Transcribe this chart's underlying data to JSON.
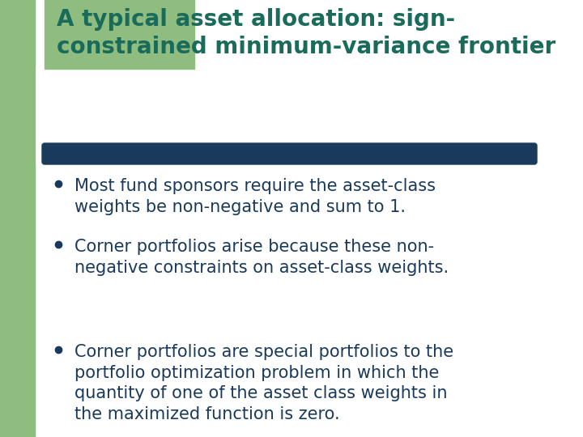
{
  "bg_color": "#ffffff",
  "green_bg_color": "#8fbc7f",
  "title_color": "#1a6b5a",
  "title_line1": "A typical asset allocation: sign-",
  "title_line2": "constrained minimum-variance frontier",
  "divider_color": "#1a3a5c",
  "bullet_color": "#1a3a5c",
  "bullet_text_color": "#1a3a5c",
  "bullets": [
    "Most fund sponsors require the asset-class\nweights be non-negative and sum to 1.",
    "Corner portfolios arise because these non-\nnegative constraints on asset-class weights.",
    "Corner portfolios are special portfolios to the\nportfolio optimization problem in which the\nquantity of one of the asset class weights in\nthe maximized function is zero."
  ],
  "title_fontsize": 20,
  "bullet_fontsize": 15
}
